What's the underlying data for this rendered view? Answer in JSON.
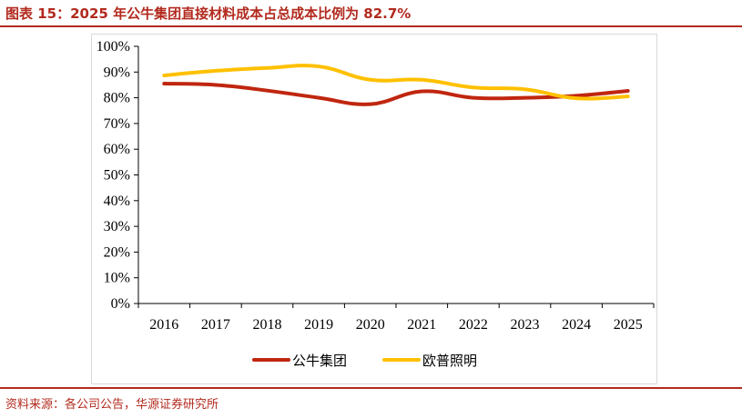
{
  "header": {
    "title": "图表 15：2025 年公牛集团直接材料成本占总成本比例为 82.7%"
  },
  "footer": {
    "source": "资料来源：各公司公告，华源证券研究所"
  },
  "chart_data": {
    "type": "line",
    "title": "",
    "xlabel": "",
    "ylabel": "",
    "x": [
      "2016",
      "2017",
      "2018",
      "2019",
      "2020",
      "2021",
      "2022",
      "2023",
      "2024",
      "2025"
    ],
    "ylim": [
      0,
      100
    ],
    "yticks": [
      "0%",
      "10%",
      "20%",
      "30%",
      "40%",
      "50%",
      "60%",
      "70%",
      "80%",
      "90%",
      "100%"
    ],
    "grid": false,
    "legend": "bottom-center",
    "series": [
      {
        "name": "公牛集团",
        "color": "#c0260f",
        "values": [
          85.5,
          85.0,
          82.8,
          80.0,
          77.5,
          82.5,
          80.0,
          80.0,
          80.8,
          82.7
        ]
      },
      {
        "name": "欧普照明",
        "color": "#ffc000",
        "values": [
          88.7,
          90.5,
          91.6,
          92.2,
          87.0,
          87.0,
          84.0,
          83.3,
          79.8,
          80.5
        ]
      }
    ]
  }
}
